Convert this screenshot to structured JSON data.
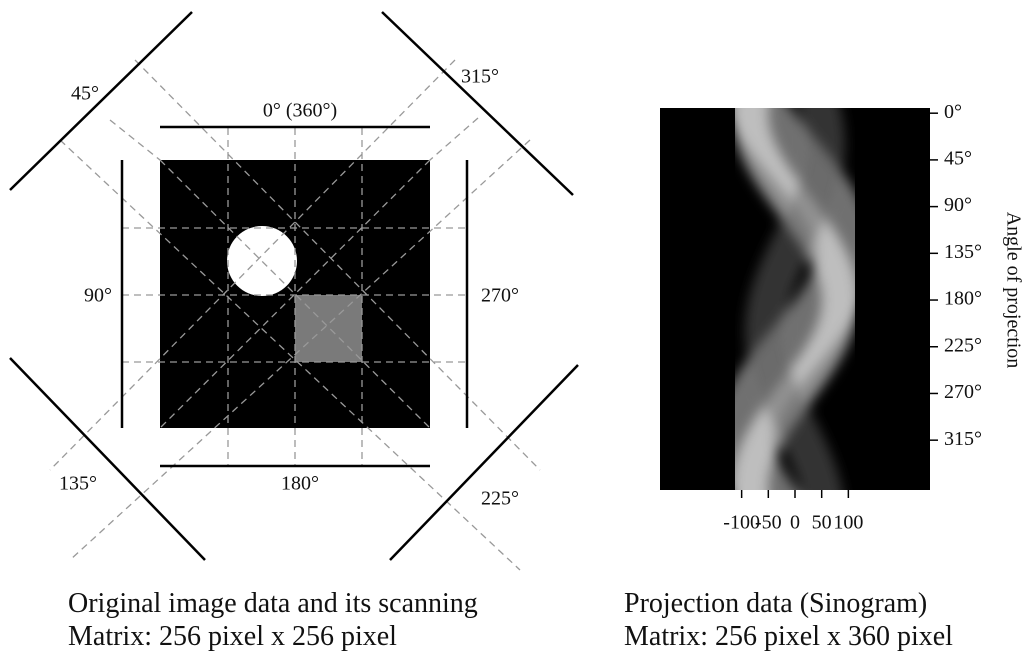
{
  "left": {
    "angle_labels": [
      "45°",
      "315°",
      "0°  (360°)",
      "90°",
      "270°",
      "135°",
      "180°",
      "225°"
    ],
    "caption": [
      "Original image data and its scanning",
      "Matrix: 256 pixel x 256 pixel"
    ]
  },
  "sinogram": {
    "xlim": [
      -253,
      253
    ],
    "ylim": [
      -5,
      363
    ],
    "xticks": [
      -100,
      -50,
      0,
      50,
      100
    ],
    "yticks": [
      {
        "value": 0,
        "label": "0°"
      },
      {
        "value": 45,
        "label": "45°"
      },
      {
        "value": 90,
        "label": "90°"
      },
      {
        "value": 135,
        "label": "135°"
      },
      {
        "value": 180,
        "label": "180°"
      },
      {
        "value": 225,
        "label": "225°"
      },
      {
        "value": 270,
        "label": "270°"
      },
      {
        "value": 315,
        "label": "315°"
      }
    ],
    "ylabel": "Angle of projection",
    "caption": [
      "Projection data (Sinogram)",
      "Matrix: 256 pixel x 360 pixel"
    ]
  }
}
